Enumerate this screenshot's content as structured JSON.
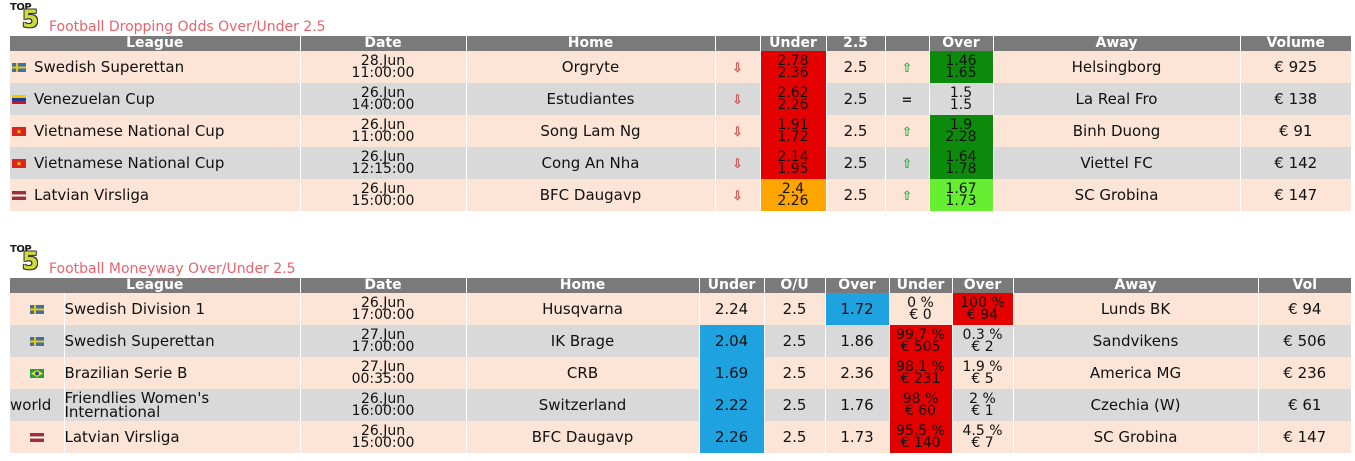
{
  "colors": {
    "header_bg": "#7a7a7a",
    "row_odd": "#fce4d6",
    "row_even": "#d9d9d9",
    "red": "#e50000",
    "orange": "#ffa500",
    "green_dark": "#0b8a0b",
    "green_light": "#66ee33",
    "blue": "#1fa2e0",
    "title": "#e8636b",
    "arrow_down": "#d04040",
    "arrow_up": "#3aa83a"
  },
  "logo": {
    "top": "TOP",
    "five": "5"
  },
  "dropping": {
    "title": "Football Dropping Odds Over/Under 2.5",
    "headers": [
      "League",
      "Date",
      "Home",
      "",
      "Under",
      "2.5",
      "",
      "Over",
      "Away",
      "Volume"
    ],
    "rows": [
      {
        "flag": "swedish-flag",
        "league": "Swedish Superettan",
        "date1": "28.Jun",
        "date2": "11:00:00",
        "home": "Orgryte",
        "under_arrow": "⇩",
        "under1": "2.78",
        "under2": "2.36",
        "under_color": "red",
        "line": "2.5",
        "over_arrow": "⇧",
        "over1": "1.46",
        "over2": "1.65",
        "over_color": "green_dark",
        "away": "Helsingborg",
        "volume": "€ 925"
      },
      {
        "flag": "venezuelan-flag",
        "league": "Venezuelan Cup",
        "date1": "26.Jun",
        "date2": "14:00:00",
        "home": "Estudiantes",
        "under_arrow": "⇩",
        "under1": "2.62",
        "under2": "2.26",
        "under_color": "red",
        "line": "2.5",
        "over_arrow": "=",
        "over1": "1.5",
        "over2": "1.5",
        "over_color": "none",
        "away": "La Real Fro",
        "volume": "€ 138"
      },
      {
        "flag": "vietnamese-flag",
        "league": "Vietnamese National Cup",
        "date1": "26.Jun",
        "date2": "11:00:00",
        "home": "Song Lam Ng",
        "under_arrow": "⇩",
        "under1": "1.91",
        "under2": "1.72",
        "under_color": "red",
        "line": "2.5",
        "over_arrow": "⇧",
        "over1": "1.9",
        "over2": "2.28",
        "over_color": "green_dark",
        "away": "Binh Duong",
        "volume": "€ 91"
      },
      {
        "flag": "vietnamese-flag",
        "league": "Vietnamese National Cup",
        "date1": "26.Jun",
        "date2": "12:15:00",
        "home": "Cong An Nha",
        "under_arrow": "⇩",
        "under1": "2.14",
        "under2": "1.95",
        "under_color": "red",
        "line": "2.5",
        "over_arrow": "⇧",
        "over1": "1.64",
        "over2": "1.78",
        "over_color": "green_dark",
        "away": "Viettel FC",
        "volume": "€ 142"
      },
      {
        "flag": "latvian-flag",
        "league": "Latvian Virsliga",
        "date1": "26.Jun",
        "date2": "15:00:00",
        "home": "BFC Daugavp",
        "under_arrow": "⇩",
        "under1": "2.4",
        "under2": "2.26",
        "under_color": "orange",
        "line": "2.5",
        "over_arrow": "⇧",
        "over1": "1.67",
        "over2": "1.73",
        "over_color": "green_light",
        "away": "SC Grobina",
        "volume": "€ 147"
      }
    ]
  },
  "moneyway": {
    "title": "Football Moneyway Over/Under 2.5",
    "headers": [
      "League",
      "Date",
      "Home",
      "Under",
      "O/U",
      "Over",
      "Under",
      "Over",
      "Away",
      "Vol"
    ],
    "rows": [
      {
        "flag": "swedish-flag",
        "flag_text": "",
        "league": "Swedish Division 1",
        "date1": "26.Jun",
        "date2": "17:00:00",
        "home": "Husqvarna",
        "under": "2.24",
        "under_color": "none",
        "ou": "2.5",
        "over": "1.72",
        "over_color": "blue",
        "mu1": "0 %",
        "mu2": "€ 0",
        "mu_color": "none",
        "mo1": "100 %",
        "mo2": "€ 94",
        "mo_color": "red",
        "away": "Lunds BK",
        "vol": "€ 94"
      },
      {
        "flag": "swedish-flag",
        "flag_text": "",
        "league": "Swedish Superettan",
        "date1": "27.Jun",
        "date2": "17:00:00",
        "home": "IK Brage",
        "under": "2.04",
        "under_color": "blue",
        "ou": "2.5",
        "over": "1.86",
        "over_color": "none",
        "mu1": "99.7 %",
        "mu2": "€ 505",
        "mu_color": "red",
        "mo1": "0.3 %",
        "mo2": "€ 2",
        "mo_color": "none",
        "away": "Sandvikens",
        "vol": "€ 506"
      },
      {
        "flag": "brazilian-flag",
        "flag_text": "",
        "league": "Brazilian Serie B",
        "date1": "27.Jun",
        "date2": "00:35:00",
        "home": "CRB",
        "under": "1.69",
        "under_color": "blue",
        "ou": "2.5",
        "over": "2.36",
        "over_color": "none",
        "mu1": "98.1 %",
        "mu2": "€ 231",
        "mu_color": "red",
        "mo1": "1.9 %",
        "mo2": "€ 5",
        "mo_color": "none",
        "away": "America MG",
        "vol": "€ 236"
      },
      {
        "flag": "",
        "flag_text": "world",
        "league": "Friendlies Women's International",
        "date1": "26.Jun",
        "date2": "16:00:00",
        "home": "Switzerland",
        "under": "2.22",
        "under_color": "blue",
        "ou": "2.5",
        "over": "1.76",
        "over_color": "none",
        "mu1": "98 %",
        "mu2": "€ 60",
        "mu_color": "red",
        "mo1": "2 %",
        "mo2": "€ 1",
        "mo_color": "none",
        "away": "Czechia (W)",
        "vol": "€ 61"
      },
      {
        "flag": "latvian-flag",
        "flag_text": "",
        "league": "Latvian Virsliga",
        "date1": "26.Jun",
        "date2": "15:00:00",
        "home": "BFC Daugavp",
        "under": "2.26",
        "under_color": "blue",
        "ou": "2.5",
        "over": "1.73",
        "over_color": "none",
        "mu1": "95.5 %",
        "mu2": "€ 140",
        "mu_color": "red",
        "mo1": "4.5 %",
        "mo2": "€ 7",
        "mo_color": "none",
        "away": "SC Grobina",
        "vol": "€ 147"
      }
    ]
  }
}
